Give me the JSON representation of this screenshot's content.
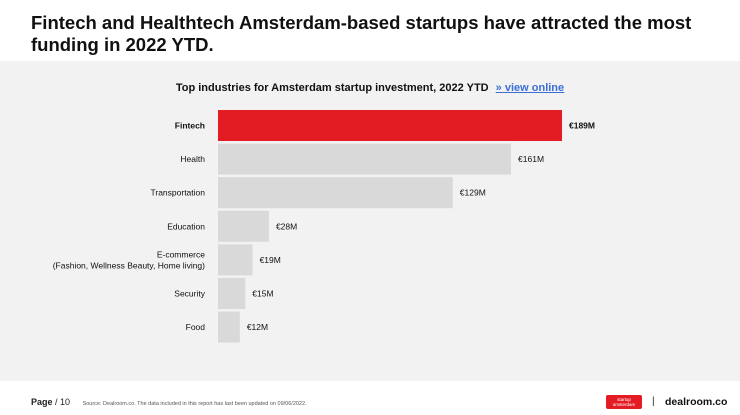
{
  "headline": "Fintech and Healthtech Amsterdam-based startups have attracted the most funding in 2022 YTD.",
  "chart_data": {
    "type": "bar",
    "orientation": "horizontal",
    "title": "Top industries for Amsterdam startup investment, 2022 YTD",
    "title_link": "» view online",
    "categories": [
      "Fintech",
      "Health",
      "Transportation",
      "Education",
      "E-commerce\n(Fashion, Wellness Beauty, Home living)",
      "Security",
      "Food"
    ],
    "values": [
      189,
      161,
      129,
      28,
      19,
      15,
      12
    ],
    "value_labels": [
      "€189M",
      "€161M",
      "€129M",
      "€28M",
      "€19M",
      "€15M",
      "€12M"
    ],
    "unit": "€M",
    "highlight_index": 0,
    "colors": {
      "highlight": "#e31b23",
      "default": "#d9d9d9"
    },
    "grid": false,
    "legend": "none"
  },
  "footer": {
    "page_label": "Page",
    "page_number": "/ 10",
    "source": "Source: Dealroom.co. The data included in this report has last been updated on 09/06/2022."
  },
  "branding": {
    "badge_text": "startup amsterdam",
    "separator": "|",
    "logo_text": "dealroom.co"
  }
}
